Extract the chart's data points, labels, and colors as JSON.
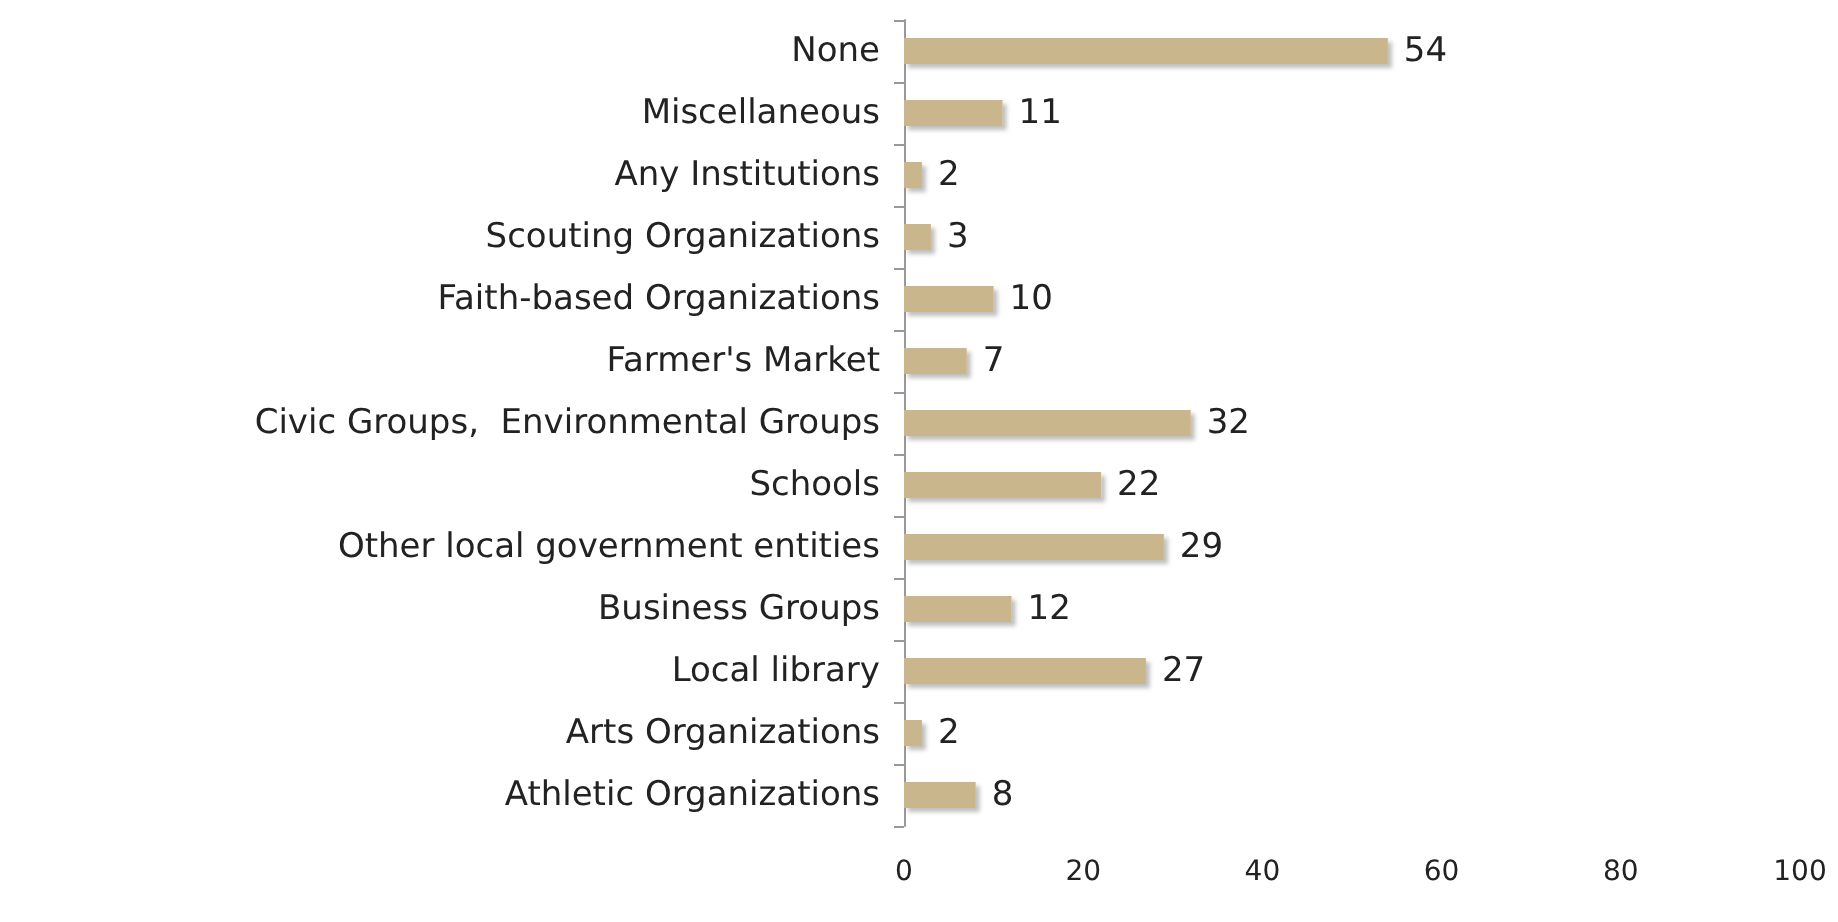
{
  "chart_data": {
    "type": "bar",
    "orientation": "horizontal",
    "categories": [
      "None",
      "Miscellaneous",
      "Any Institutions",
      "Scouting Organizations",
      "Faith-based Organizations",
      "Farmer's Market",
      "Civic Groups,  Environmental Groups",
      "Schools",
      "Other local government entities",
      "Business Groups",
      "Local library",
      "Arts Organizations",
      "Athletic Organizations"
    ],
    "values": [
      54,
      11,
      2,
      3,
      10,
      7,
      32,
      22,
      29,
      12,
      27,
      2,
      8
    ],
    "color": "#c9b68c",
    "xlim": [
      0,
      100
    ],
    "xticks": [
      0,
      20,
      40,
      60,
      80,
      100
    ],
    "data_labels": true,
    "grid": false
  }
}
